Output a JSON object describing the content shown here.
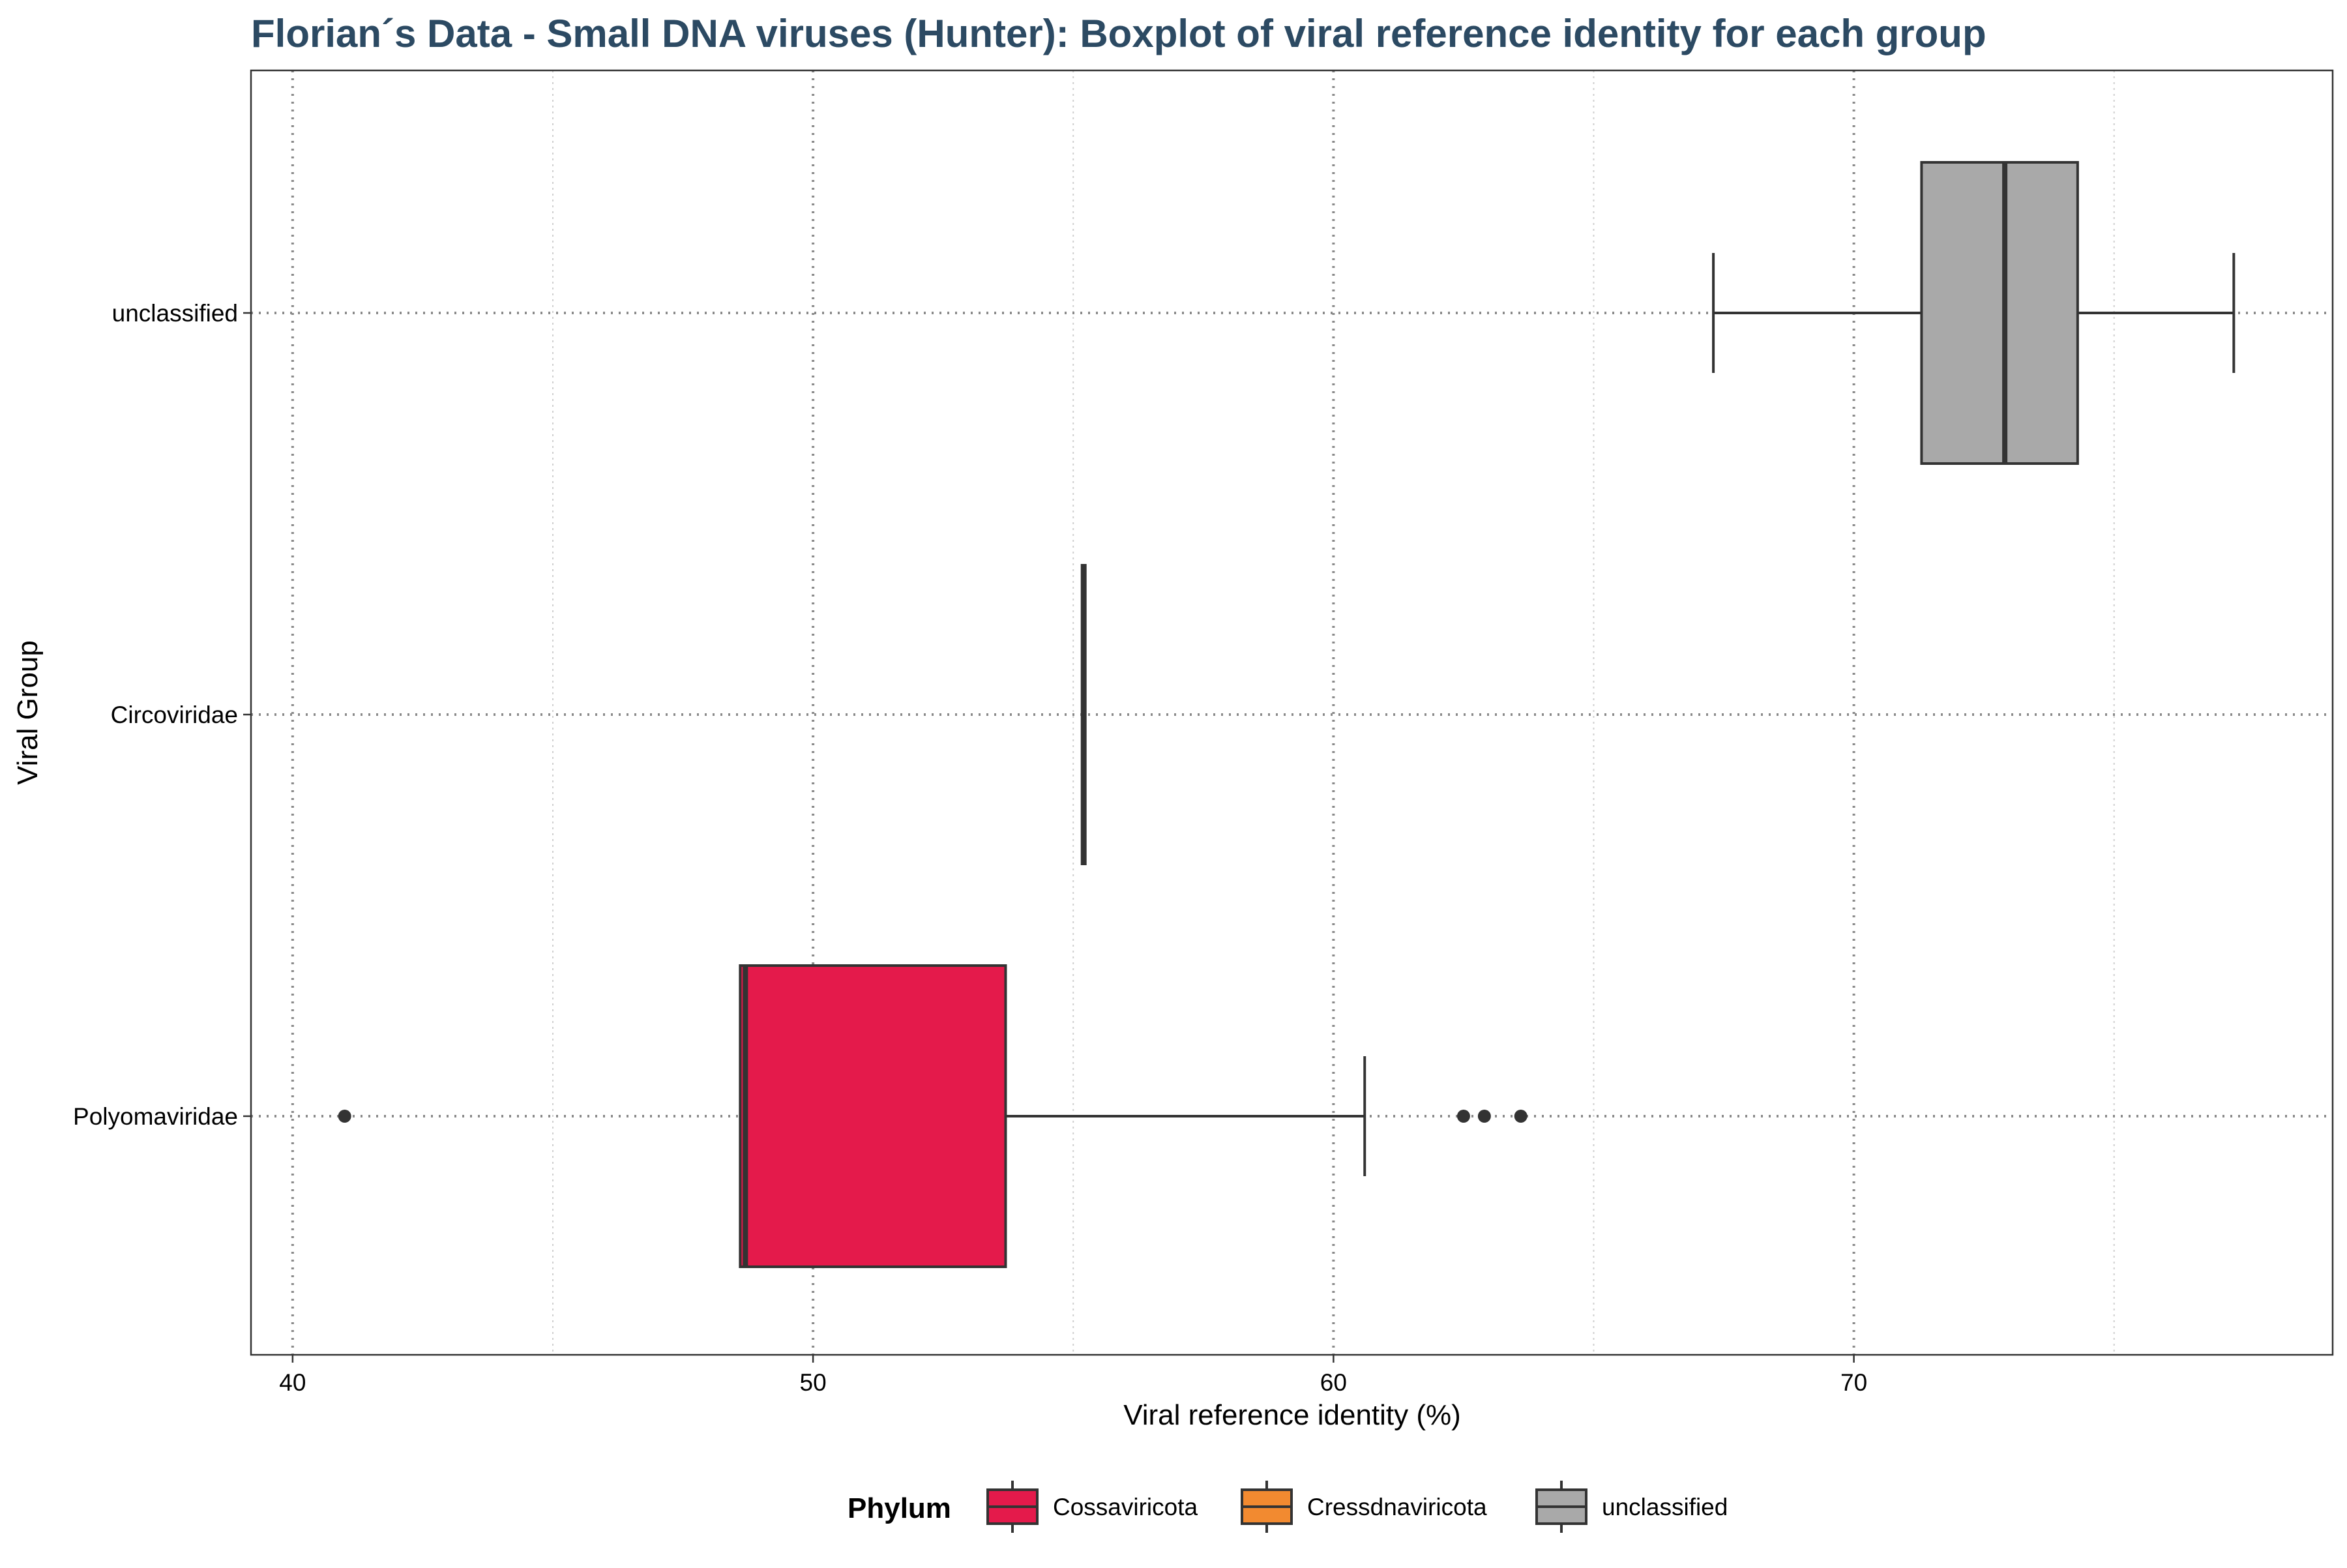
{
  "chart_data": {
    "type": "boxplot",
    "orientation": "horizontal",
    "title": "Florian´s Data - Small DNA viruses (Hunter): Boxplot of viral reference identity for each group",
    "title_color": "#2c4a63",
    "xlabel": "Viral reference identity (%)",
    "ylabel": "Viral Group",
    "xlim": [
      39.2,
      79.2
    ],
    "x_ticks": [
      40,
      50,
      60,
      70
    ],
    "x_tick_labels": [
      "40",
      "50",
      "60",
      "70"
    ],
    "categories": [
      "Polyomaviridae",
      "Circoviridae",
      "unclassified"
    ],
    "grid": "dotted major and minor lines",
    "legend_position": "bottom",
    "legend": {
      "title": "Phylum",
      "entries": [
        {
          "label": "Cossaviricota",
          "color": "#e41a4b"
        },
        {
          "label": "Cressdnaviricota",
          "color": "#f28a30"
        },
        {
          "label": "unclassified",
          "color": "#a9a9a9"
        }
      ]
    },
    "series": [
      {
        "category": "Polyomaviridae",
        "phylum": "Cossaviricota",
        "color": "#e41a4b",
        "whisker_low": 48.6,
        "q1": 48.6,
        "median": 48.7,
        "q3": 53.7,
        "whisker_high": 60.6,
        "outliers": [
          41.0,
          62.5,
          62.9,
          63.6
        ]
      },
      {
        "category": "Circoviridae",
        "phylum": "Cressdnaviricota",
        "color": "#f28a30",
        "whisker_low": 55.2,
        "q1": 55.2,
        "median": 55.2,
        "q3": 55.2,
        "whisker_high": 55.2,
        "outliers": []
      },
      {
        "category": "unclassified",
        "phylum": "unclassified",
        "color": "#a9a9a9",
        "whisker_low": 67.3,
        "q1": 71.3,
        "median": 72.9,
        "q3": 74.3,
        "whisker_high": 77.3,
        "outliers": []
      }
    ]
  }
}
